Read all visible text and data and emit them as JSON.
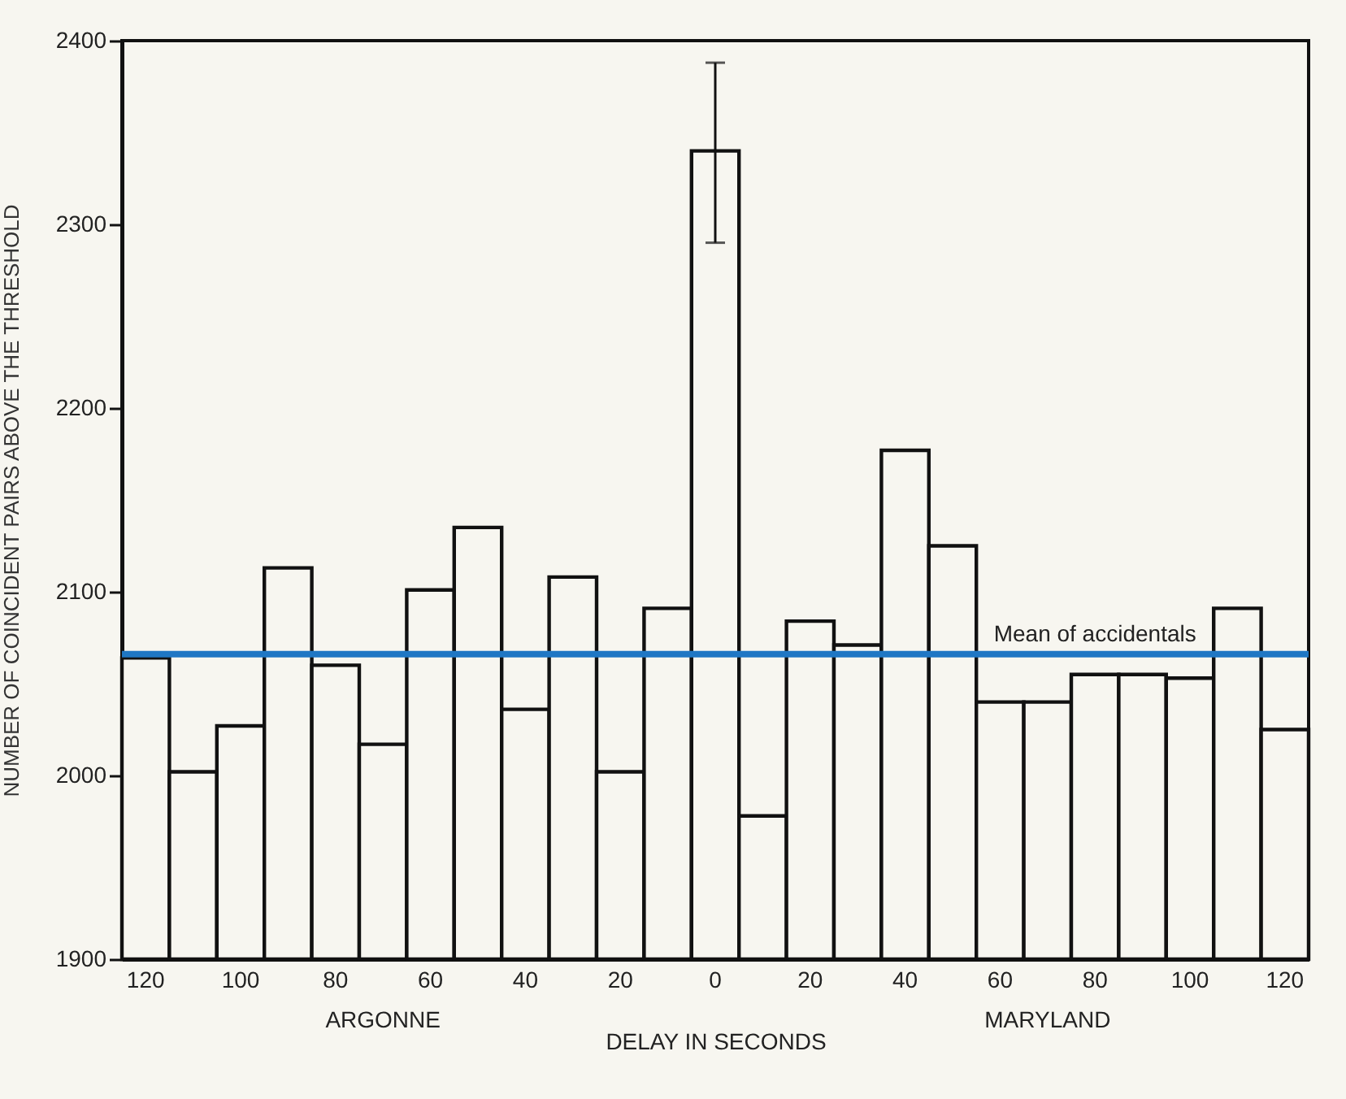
{
  "chart_data": {
    "type": "bar",
    "xlabel": "DELAY IN SECONDS",
    "ylabel": "NUMBER OF COINCIDENT PAIRS ABOVE THE THRESHOLD",
    "categories": [
      "120",
      null,
      "100",
      null,
      "80",
      null,
      "60",
      null,
      "40",
      null,
      "20",
      null,
      "0",
      null,
      "20",
      null,
      "40",
      null,
      "60",
      null,
      "80",
      null,
      "100",
      null,
      "120"
    ],
    "values": [
      2064,
      2002,
      2027,
      2113,
      2060,
      2017,
      2101,
      2135,
      2036,
      2108,
      2002,
      2091,
      2340,
      1978,
      2084,
      2071,
      2177,
      2125,
      2040,
      2040,
      2055,
      2055,
      2053,
      2091,
      2025
    ],
    "errors": [
      null,
      null,
      null,
      null,
      null,
      null,
      null,
      null,
      null,
      null,
      null,
      null,
      [
        2290,
        2388
      ],
      null,
      null,
      null,
      null,
      null,
      null,
      null,
      null,
      null,
      null,
      null,
      null
    ],
    "color": "#f7f6f0",
    "ylim": [
      1900,
      2400
    ],
    "yticks": [
      1900,
      2000,
      2100,
      2200,
      2300,
      2400
    ],
    "ref_lines": [
      {
        "axis": "y",
        "value": 2066,
        "label": "Mean of accidentals",
        "color": "#1f77c4"
      }
    ],
    "annotations": [
      "ARGONNE",
      "MARYLAND"
    ]
  }
}
